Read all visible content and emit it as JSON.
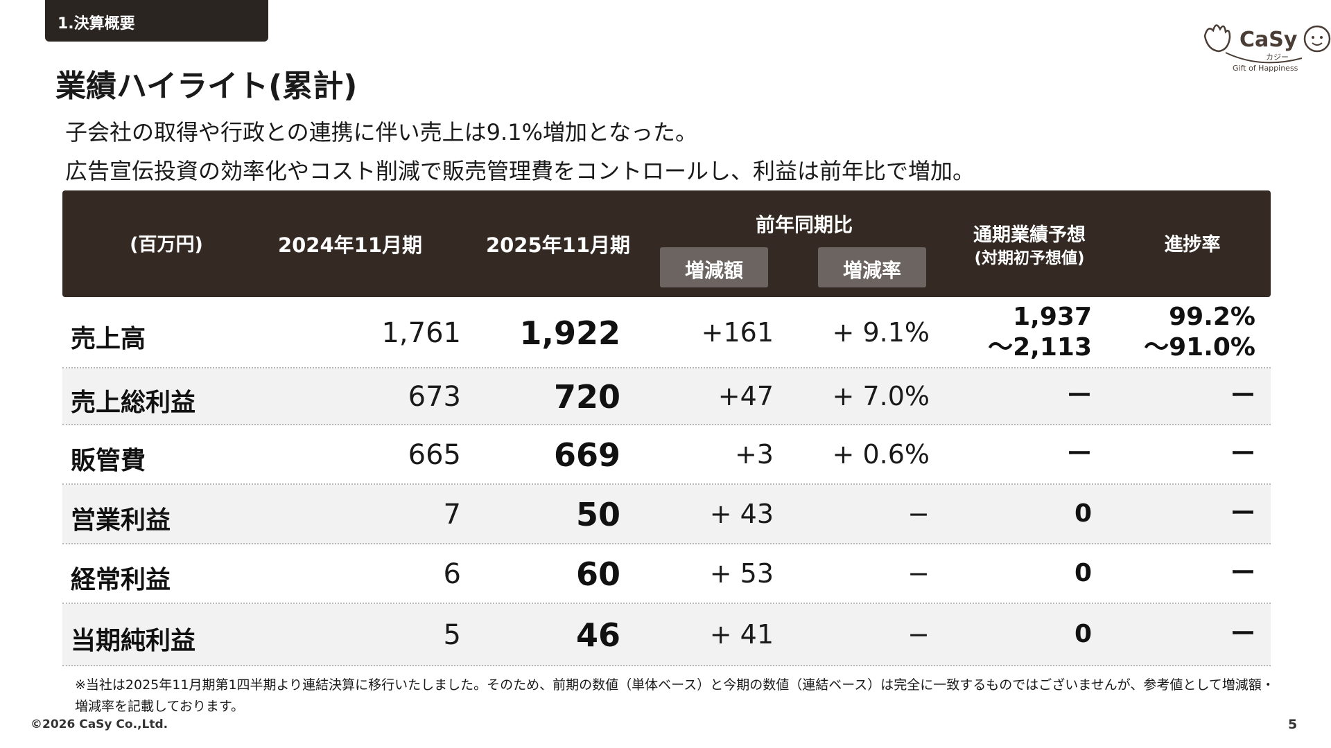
{
  "header": {
    "section": "1.決算概要",
    "title": "業績ハイライト(累計)",
    "logo": {
      "name": "CaSy",
      "kana": "カジー",
      "tagline": "Gift of Happiness"
    }
  },
  "summary": [
    "子会社の取得や行政との連携に伴い売上は9.1%増加となった。",
    "広告宣伝投資の効率化やコスト削減で販売管理費をコントロールし、利益は前年比で増加。"
  ],
  "table": {
    "headers": {
      "unit": "(百万円)",
      "fy2024": "2024年11月期",
      "fy2025": "2025年11月期",
      "yoy": "前年同期比",
      "yoy_amount": "増減額",
      "yoy_rate": "増減率",
      "forecast": "通期業績予想",
      "forecast_sub": "(対期初予想値)",
      "progress": "進捗率"
    },
    "rows": [
      {
        "label": "売上高",
        "fy2024": "1,761",
        "fy2025": "1,922",
        "amount": "+161",
        "rate": "+ 9.1%",
        "forecast": [
          "1,937",
          "〜2,113"
        ],
        "progress": [
          "99.2%",
          "〜91.0%"
        ]
      },
      {
        "label": "売上総利益",
        "fy2024": "673",
        "fy2025": "720",
        "amount": "+47",
        "rate": "+ 7.0%",
        "forecast": [
          "ー"
        ],
        "progress": [
          "ー"
        ]
      },
      {
        "label": "販管費",
        "fy2024": "665",
        "fy2025": "669",
        "amount": "+3",
        "rate": "+ 0.6%",
        "forecast": [
          "ー"
        ],
        "progress": [
          "ー"
        ]
      },
      {
        "label": "営業利益",
        "fy2024": "7",
        "fy2025": "50",
        "amount": "+ 43",
        "rate": "−",
        "forecast": [
          "0"
        ],
        "progress": [
          "ー"
        ]
      },
      {
        "label": "経常利益",
        "fy2024": "6",
        "fy2025": "60",
        "amount": "+ 53",
        "rate": "−",
        "forecast": [
          "0"
        ],
        "progress": [
          "ー"
        ]
      },
      {
        "label": "当期純利益",
        "fy2024": "5",
        "fy2025": "46",
        "amount": "+ 41",
        "rate": "−",
        "forecast": [
          "0"
        ],
        "progress": [
          "ー"
        ]
      }
    ]
  },
  "footnote": "※当社は2025年11月期第1四半期より連結決算に移行いたしました。そのため、前期の数値（単体ベース）と今期の数値（連結ベース）は完全に一致するものではございませんが、参考値として増減額・増減率を記載しております。",
  "footer": {
    "copyright": "©2026 CaSy Co.,Ltd.",
    "page": "5"
  },
  "colors": {
    "header_bg": "#342a23",
    "subheader_bg": "#6b6460",
    "alt_row": "#f2f2f2",
    "logo": "#4a3d36"
  }
}
